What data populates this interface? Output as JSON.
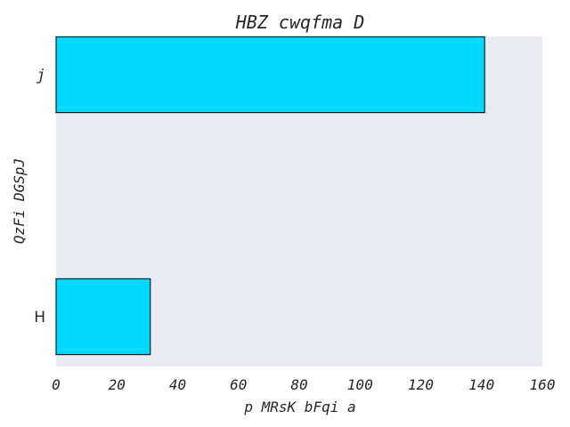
{
  "chart_data": {
    "type": "bar",
    "orientation": "horizontal",
    "title": "HBZ cwqfma D",
    "xlabel": "p MRsK bFqi a",
    "ylabel": "QzFi DGSpJ",
    "categories": [
      "j",
      "H"
    ],
    "values": [
      141,
      31
    ],
    "xlim": [
      0,
      160
    ],
    "xticks": [
      0,
      20,
      40,
      60,
      80,
      100,
      120,
      140,
      160
    ],
    "grid": false,
    "legend": "none",
    "colors": {
      "bar_fill": "#00d8ff",
      "bar_edge": "#000000",
      "plot_background": "#eaeaf2",
      "page_background": "#ffffff",
      "text": "#262626"
    }
  }
}
